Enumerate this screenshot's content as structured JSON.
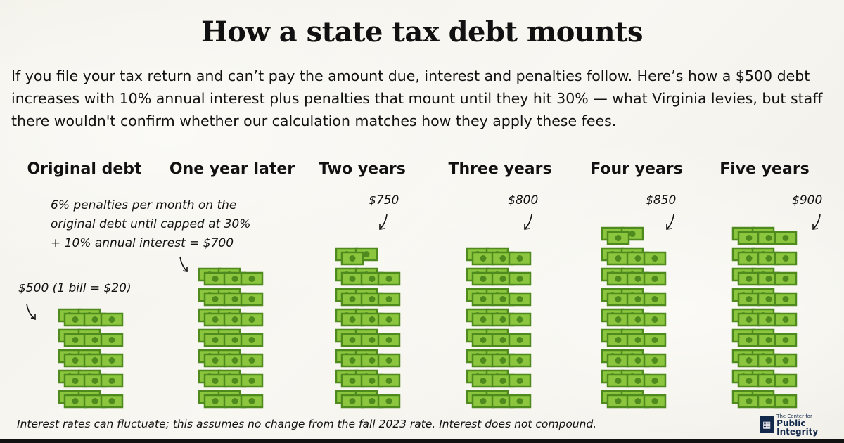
{
  "title": "How a state tax debt mounts",
  "intro": "If you file your tax return and can’t pay the amount due, interest and penalties follow. Here’s how a $500 debt increases with 10% annual interest plus penalties that mount until they hit 30% — what Virginia levies, but staff there wouldn't confirm whether our calculation matches how they apply these fees.",
  "annotations": {
    "original": "$500 (1 bill = $20)",
    "penalty_line1": "6% penalties per month on the",
    "penalty_line2": "original debt until capped at 30%",
    "penalty_line3": "+ 10% annual interest = $700"
  },
  "footnote": "Interest rates can fluctuate; this assumes no change from the fall 2023 rate. Interest does not compound.",
  "logo": {
    "line1": "The Center for",
    "line2": "Public Integrity"
  },
  "colors": {
    "bill_dark": "#4f8a1f",
    "bill_light": "#8cc63f",
    "logo": "#13294b"
  },
  "chart_data": {
    "type": "pictograph",
    "unit": "1 bill = $20",
    "categories": [
      "Original debt",
      "One year later",
      "Two years",
      "Three years",
      "Four years",
      "Five years"
    ],
    "values": [
      500,
      700,
      750,
      800,
      850,
      900
    ],
    "value_labels": [
      "",
      "",
      "$750",
      "$800",
      "$850",
      "$900"
    ]
  }
}
